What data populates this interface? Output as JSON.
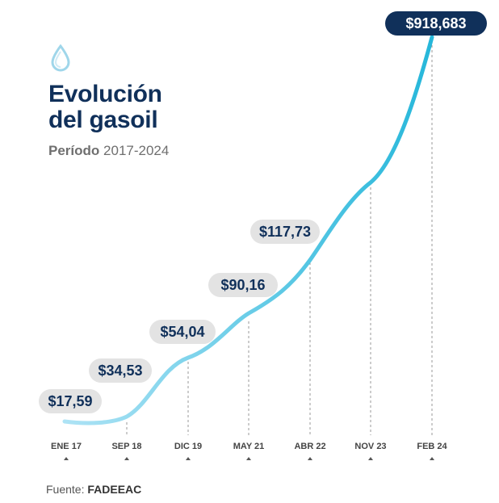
{
  "header": {
    "title_line1": "Evolución",
    "title_line2": "del gasoil",
    "period_label": "Período",
    "period_range": "2017-2024",
    "icon": "drop-icon"
  },
  "footer": {
    "source_label": "Fuente:",
    "source_name": "FADEEAC"
  },
  "colors": {
    "title": "#10305a",
    "line_start": "#aee3f5",
    "line_end": "#26b7da",
    "label_bg": "#e3e3e3",
    "label_text": "#10305a",
    "highlight_bg": "#10305a",
    "highlight_text": "#ffffff"
  },
  "chart_data": {
    "type": "line",
    "title": "Evolución del gasoil",
    "subtitle": "Período 2017-2024",
    "x": [
      "ENE 17",
      "SEP 18",
      "DIC 19",
      "MAY 21",
      "ABR 22",
      "NOV 23",
      "FEB 24"
    ],
    "series": [
      {
        "values": [
          17.59,
          34.53,
          54.04,
          90.16,
          117.73,
          null,
          918.683
        ]
      }
    ],
    "data_labels": [
      {
        "x": "ENE 17",
        "text": "$17,59"
      },
      {
        "x": "SEP 18",
        "text": "$34,53"
      },
      {
        "x": "DIC 19",
        "text": "$54,04"
      },
      {
        "x": "MAY 21",
        "text": "$90,16"
      },
      {
        "x": "ABR 22",
        "text": "$117,73"
      },
      {
        "x": "FEB 24",
        "text": "$918,683",
        "highlight": true
      }
    ],
    "grid": false,
    "legend": "none"
  }
}
